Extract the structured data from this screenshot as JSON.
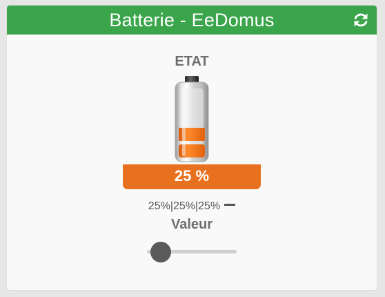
{
  "widget": {
    "title": "Batterie - EeDomus",
    "refresh_icon": "refresh-icon",
    "header_color": "#3aa54a"
  },
  "state": {
    "label": "ETAT",
    "battery_icon": "battery-icon",
    "level_percent": 25,
    "value_text": "25 %",
    "accent_color": "#e8711f"
  },
  "history": {
    "text": "25%|25%|25%",
    "trend_icon": "dash-icon"
  },
  "control": {
    "label": "Valeur",
    "slider_value_fraction": 0.15
  }
}
